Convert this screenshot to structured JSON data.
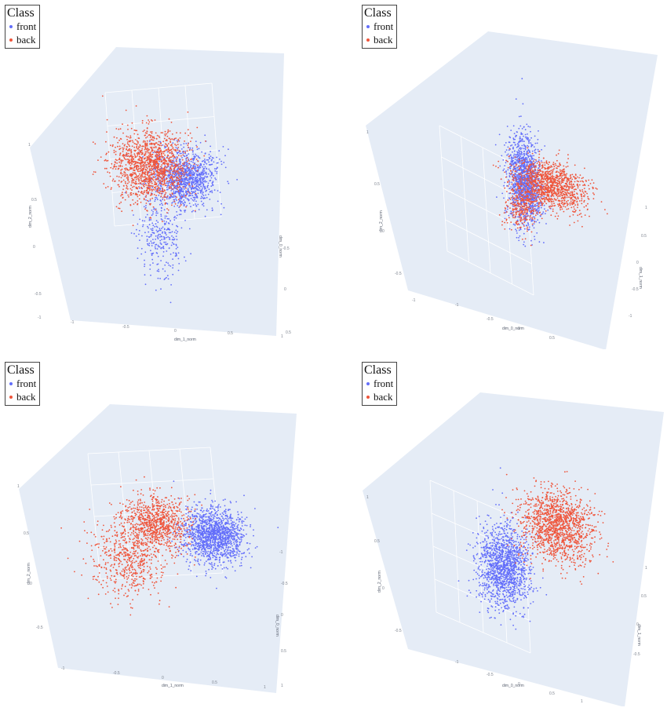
{
  "legend": {
    "title": "Class",
    "items": [
      {
        "label": "front",
        "color": "#636efa"
      },
      {
        "label": "back",
        "color": "#ef553b"
      }
    ]
  },
  "colors": {
    "scene_bg": "#e5ecf6",
    "grid": "#ffffff",
    "front": "#636efa",
    "back": "#ef553b"
  },
  "chart_data": [
    {
      "type": "scatter",
      "subtype": "3d",
      "axes": {
        "x": "dim_1_norm",
        "y": "dim_0_norm",
        "z": "dim_2_norm"
      },
      "z_ticks": [
        "1",
        "0.5",
        "0",
        "-0.5",
        "-1"
      ],
      "x_ticks": [
        "-1",
        "-0.5",
        "0",
        "0.5",
        "1"
      ],
      "y_ticks": [
        "-0.5",
        "0",
        "0.5",
        "1"
      ],
      "series": [
        {
          "name": "front",
          "clusters": [
            {
              "center": [
                0.25,
                0.1,
                0.1
              ],
              "spread": [
                0.3,
                0.2,
                0.2
              ],
              "weight": 0.8
            },
            {
              "center": [
                -0.3,
                0.3,
                -0.6
              ],
              "spread": [
                0.2,
                0.2,
                0.3
              ],
              "weight": 0.2
            }
          ]
        },
        {
          "name": "back",
          "clusters": [
            {
              "center": [
                -0.35,
                -0.2,
                0.2
              ],
              "spread": [
                0.35,
                0.25,
                0.25
              ],
              "weight": 1.0
            }
          ]
        }
      ]
    },
    {
      "type": "scatter",
      "subtype": "3d",
      "axes": {
        "x": "dim_0_norm",
        "y": "dim_1_norm",
        "z": "dim_2_norm"
      },
      "z_ticks": [
        "1",
        "0.5",
        "0",
        "-0.5",
        "-1"
      ],
      "x_ticks": [
        "-1",
        "-0.5",
        "0",
        "0.5"
      ],
      "y_ticks": [
        "1",
        "0.5",
        "0",
        "-0.5",
        "-1"
      ],
      "series": [
        {
          "name": "front",
          "clusters": [
            {
              "center": [
                -0.1,
                0.0,
                0.2
              ],
              "spread": [
                0.12,
                0.15,
                0.35
              ],
              "weight": 1.0
            }
          ]
        },
        {
          "name": "back",
          "clusters": [
            {
              "center": [
                0.4,
                0.1,
                0.3
              ],
              "spread": [
                0.35,
                0.25,
                0.15
              ],
              "weight": 0.8
            },
            {
              "center": [
                0.0,
                -0.2,
                -0.1
              ],
              "spread": [
                0.12,
                0.15,
                0.2
              ],
              "weight": 0.2
            }
          ]
        }
      ]
    },
    {
      "type": "scatter",
      "subtype": "3d",
      "axes": {
        "x": "dim_1_norm",
        "y": "dim_0_norm",
        "z": "dim_2_norm"
      },
      "z_ticks": [
        "1",
        "0.5",
        "0",
        "-0.5"
      ],
      "x_ticks": [
        "-1",
        "-0.5",
        "0",
        "0.5",
        "1"
      ],
      "y_ticks": [
        "-1",
        "-0.5",
        "0",
        "0.5",
        "1"
      ],
      "series": [
        {
          "name": "front",
          "clusters": [
            {
              "center": [
                0.8,
                0.1,
                0.1
              ],
              "spread": [
                0.25,
                0.2,
                0.2
              ],
              "weight": 1.0
            }
          ]
        },
        {
          "name": "back",
          "clusters": [
            {
              "center": [
                -0.1,
                0.0,
                0.3
              ],
              "spread": [
                0.25,
                0.2,
                0.2
              ],
              "weight": 0.6
            },
            {
              "center": [
                -0.6,
                -0.3,
                -0.4
              ],
              "spread": [
                0.3,
                0.2,
                0.3
              ],
              "weight": 0.4
            }
          ]
        }
      ]
    },
    {
      "type": "scatter",
      "subtype": "3d",
      "axes": {
        "x": "dim_0_norm",
        "y": "dim_1_norm",
        "z": "dim_2_norm"
      },
      "z_ticks": [
        "1",
        "0.5",
        "0",
        "-0.5"
      ],
      "x_ticks": [
        "-1",
        "-0.5",
        "0",
        "0.5",
        "1"
      ],
      "y_ticks": [
        "1",
        "0.5",
        "0",
        "-0.5"
      ],
      "series": [
        {
          "name": "front",
          "clusters": [
            {
              "center": [
                -0.3,
                -0.2,
                -0.3
              ],
              "spread": [
                0.2,
                0.2,
                0.3
              ],
              "weight": 1.0
            }
          ]
        },
        {
          "name": "back",
          "clusters": [
            {
              "center": [
                0.4,
                0.3,
                0.4
              ],
              "spread": [
                0.3,
                0.25,
                0.25
              ],
              "weight": 1.0
            }
          ]
        }
      ]
    }
  ]
}
